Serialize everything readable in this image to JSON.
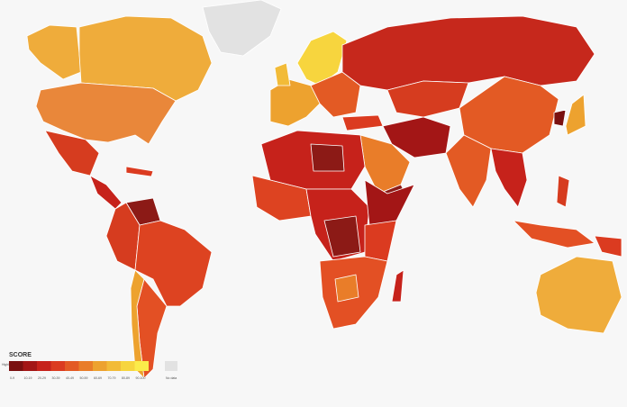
{
  "legend": {
    "title": "SCORE",
    "note": "Highly corrupt",
    "items": [
      {
        "label": "0-9",
        "color": "#7a1010"
      },
      {
        "label": "10-19",
        "color": "#a31616"
      },
      {
        "label": "20-29",
        "color": "#c6221b"
      },
      {
        "label": "30-39",
        "color": "#db3b20"
      },
      {
        "label": "40-49",
        "color": "#e35a24"
      },
      {
        "label": "50-59",
        "color": "#e97d29"
      },
      {
        "label": "60-69",
        "color": "#eda22f"
      },
      {
        "label": "70-79",
        "color": "#f2bb38"
      },
      {
        "label": "80-89",
        "color": "#f7d53e"
      },
      {
        "label": "90-100",
        "color": "#fbec4a"
      }
    ],
    "no_data": {
      "label": "No data",
      "color": "#e2e2e2"
    }
  }
}
